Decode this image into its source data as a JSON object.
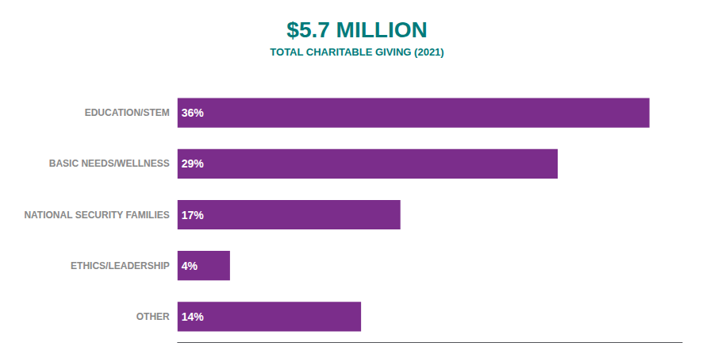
{
  "chart_data": {
    "type": "bar",
    "orientation": "horizontal",
    "title": "$5.7 MILLION",
    "subtitle": "TOTAL CHARITABLE GIVING (2021)",
    "categories": [
      "EDUCATION/STEM",
      "BASIC NEEDS/WELLNESS",
      "NATIONAL SECURITY FAMILIES",
      "ETHICS/LEADERSHIP",
      "OTHER"
    ],
    "values": [
      36,
      29,
      17,
      4,
      14
    ],
    "value_labels": [
      "36%",
      "29%",
      "17%",
      "4%",
      "14%"
    ],
    "color": "#7B2D8B",
    "xlim": [
      0,
      38.5
    ],
    "data_labels": true,
    "tick_labels": "y",
    "grid": false
  }
}
